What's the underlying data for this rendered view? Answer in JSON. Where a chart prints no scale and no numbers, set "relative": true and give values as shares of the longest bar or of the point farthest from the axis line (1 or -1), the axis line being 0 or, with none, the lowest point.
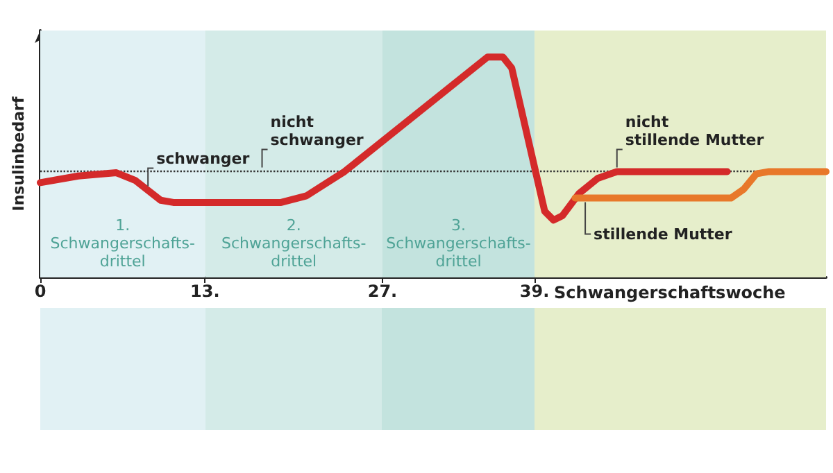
{
  "chart_data": {
    "type": "line",
    "relative": true,
    "ylabel": "Insulinbedarf",
    "xlabel": "Schwangerschaftswoche",
    "xlim": [
      0,
      62
    ],
    "xticks": [
      0,
      {
        "value": 13,
        "label": "13."
      },
      {
        "value": 27,
        "label": "27."
      },
      {
        "value": 39,
        "label": "39."
      }
    ],
    "series": [
      {
        "color": "#d42a2a",
        "x": [
          0,
          3,
          6,
          7.5,
          9.5,
          10.5,
          19,
          21,
          24,
          35.3,
          36.5,
          37.2,
          39.8,
          40.5,
          41.2,
          42.5,
          44,
          45.5,
          54.2
        ],
        "values": [
          0.43,
          0.46,
          0.475,
          0.44,
          0.35,
          0.34,
          0.34,
          0.37,
          0.48,
          1,
          1,
          0.95,
          0.3,
          0.26,
          0.28,
          0.38,
          0.45,
          0.48,
          0.48
        ]
      },
      {
        "color": "#e8782a",
        "x": [
          42.2,
          54.5,
          55.5,
          56.5,
          57.5,
          62
        ],
        "values": [
          0.36,
          0.36,
          0.4,
          0.47,
          0.48,
          0.48
        ]
      }
    ],
    "ref_lines": [
      {
        "axis": "y",
        "value": 0.48,
        "color": "#333333",
        "line_style": "dotted"
      }
    ],
    "bands": [
      {
        "axis": "x",
        "from": 0,
        "to": 13,
        "label": "1.\nSchwangerschafts-\ndrittel",
        "color": "#e1f1f4"
      },
      {
        "axis": "x",
        "from": 13,
        "to": 27,
        "label": "2.\nSchwangerschafts-\ndrittel",
        "color": "#d4ebe8"
      },
      {
        "axis": "x",
        "from": 27,
        "to": 39,
        "label": "3.\nSchwangerschafts-\ndrittel",
        "color": "#c3e3de"
      },
      {
        "axis": "x",
        "from": 39,
        "to": 62,
        "color": "#e6eecb"
      }
    ],
    "annotations": [
      {
        "text": "schwanger",
        "x": 8.5,
        "y": 0.395
      },
      {
        "text": "nicht\nschwanger",
        "x": 17.5,
        "y": 0.48
      },
      {
        "text": "nicht\nstillende Mutter",
        "x": 45.5,
        "y": 0.48
      },
      {
        "text": "stillende Mutter",
        "x": 43,
        "y": 0.36
      }
    ],
    "grid": false,
    "line_style": "solid",
    "marker": "none"
  }
}
